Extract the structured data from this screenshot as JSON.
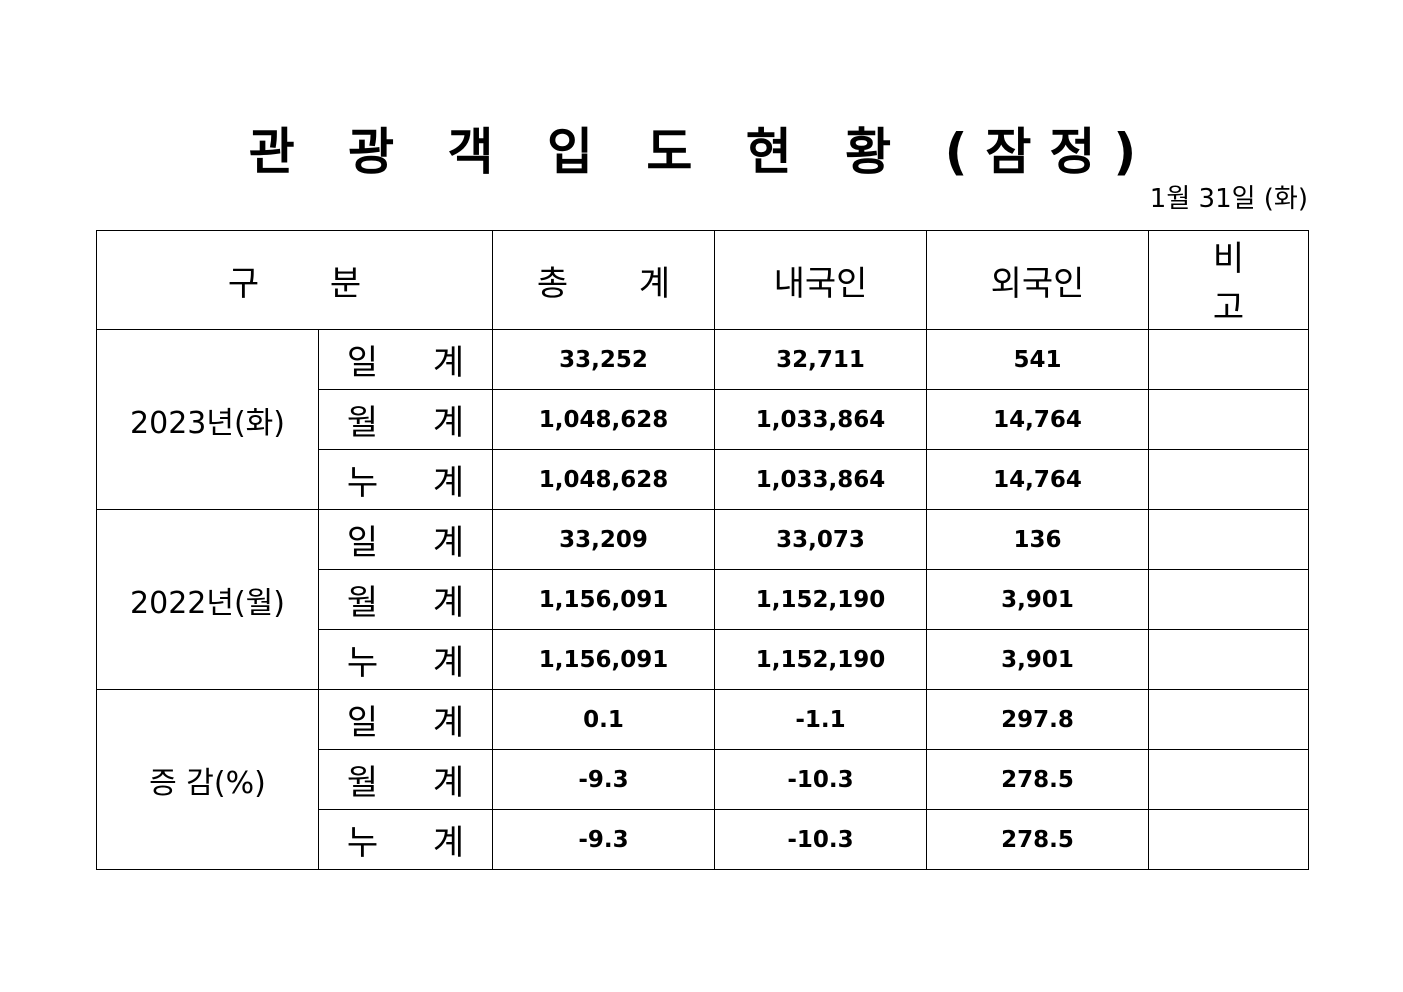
{
  "title": "관 광 객 입 도 현 황 (잠정)",
  "date": "1월 31일 (화)",
  "headers": [
    "구 분",
    "총 계",
    "내국인",
    "외국인",
    "비 고"
  ],
  "groups": [
    {
      "label": "2023년(화)",
      "rows": [
        {
          "sub": "일 계",
          "total": "33,252",
          "domestic": "32,711",
          "foreign": "541",
          "note": ""
        },
        {
          "sub": "월 계",
          "total": "1,048,628",
          "domestic": "1,033,864",
          "foreign": "14,764",
          "note": ""
        },
        {
          "sub": "누 계",
          "total": "1,048,628",
          "domestic": "1,033,864",
          "foreign": "14,764",
          "note": ""
        }
      ]
    },
    {
      "label": "2022년(월)",
      "rows": [
        {
          "sub": "일 계",
          "total": "33,209",
          "domestic": "33,073",
          "foreign": "136",
          "note": ""
        },
        {
          "sub": "월 계",
          "total": "1,156,091",
          "domestic": "1,152,190",
          "foreign": "3,901",
          "note": ""
        },
        {
          "sub": "누 계",
          "total": "1,156,091",
          "domestic": "1,152,190",
          "foreign": "3,901",
          "note": ""
        }
      ]
    },
    {
      "label": "증 감(%)",
      "rows": [
        {
          "sub": "일 계",
          "total": "0.1",
          "domestic": "-1.1",
          "foreign": "297.8",
          "note": ""
        },
        {
          "sub": "월 계",
          "total": "-9.3",
          "domestic": "-10.3",
          "foreign": "278.5",
          "note": ""
        },
        {
          "sub": "누 계",
          "total": "-9.3",
          "domestic": "-10.3",
          "foreign": "278.5",
          "note": ""
        }
      ]
    }
  ]
}
